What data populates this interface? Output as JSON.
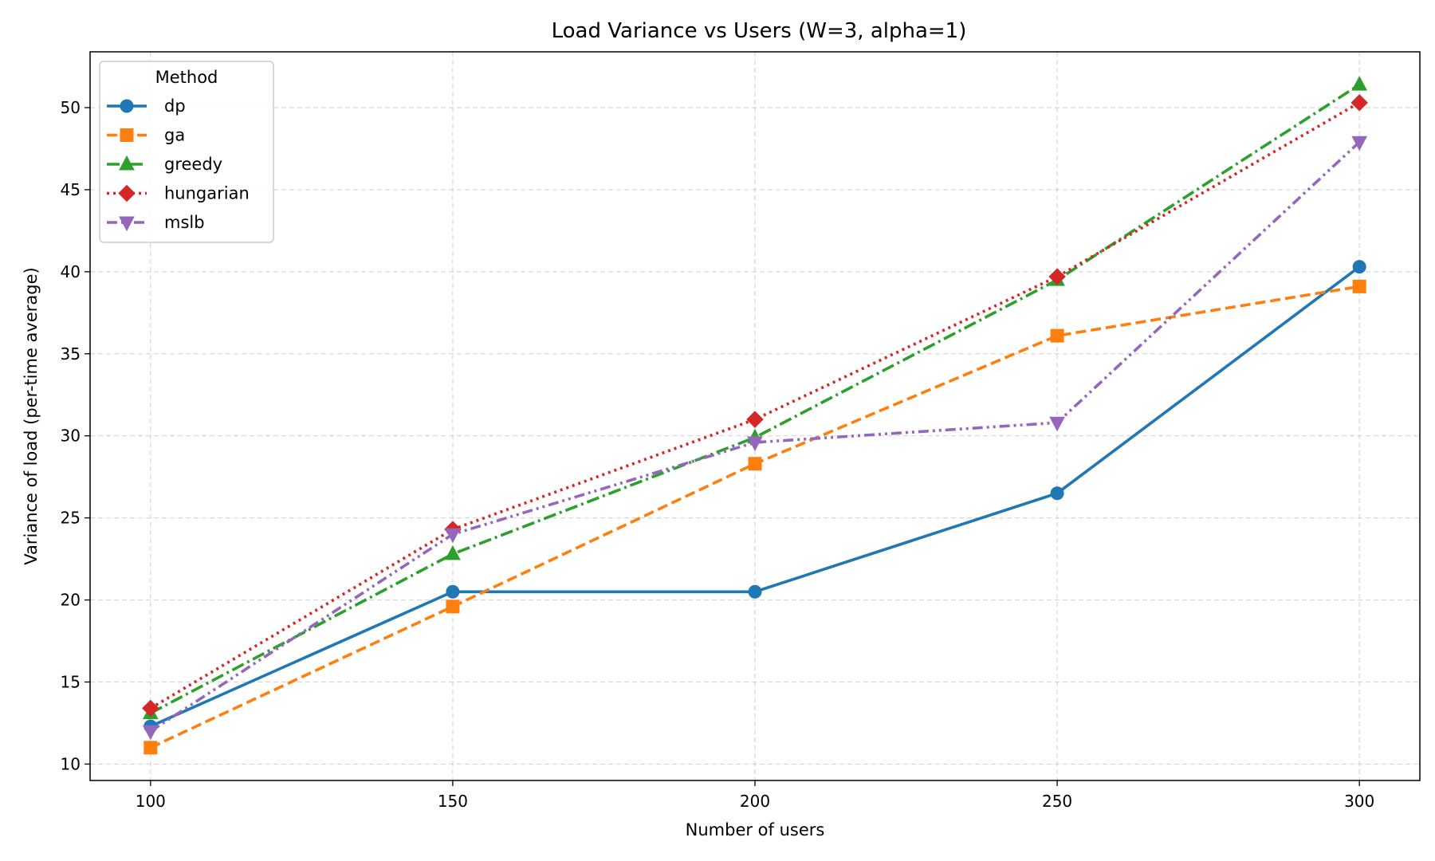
{
  "chart_data": {
    "type": "line",
    "title": "Load Variance vs Users (W=3, alpha=1)",
    "xlabel": "Number of users",
    "ylabel": "Variance of load (per-time average)",
    "x": [
      100,
      150,
      200,
      250,
      300
    ],
    "xticks": [
      "100",
      "150",
      "200",
      "250",
      "300"
    ],
    "yticks": [
      "10",
      "15",
      "20",
      "25",
      "30",
      "35",
      "40",
      "45",
      "50"
    ],
    "xlim": [
      90,
      310
    ],
    "ylim": [
      9.0,
      53.4
    ],
    "grid": true,
    "legend": {
      "title": "Method",
      "placement": "top-left"
    },
    "series": [
      {
        "name": "dp",
        "values": [
          12.3,
          20.5,
          20.5,
          26.5,
          40.3
        ],
        "color": "#1f77b4",
        "marker": "circle",
        "dash": "solid"
      },
      {
        "name": "ga",
        "values": [
          11.0,
          19.6,
          28.3,
          36.1,
          39.1
        ],
        "color": "#ff7f0e",
        "marker": "square",
        "dash": "dashed"
      },
      {
        "name": "greedy",
        "values": [
          13.1,
          22.8,
          29.9,
          39.5,
          51.4
        ],
        "color": "#2ca02c",
        "marker": "triangle-up",
        "dash": "dashdot"
      },
      {
        "name": "hungarian",
        "values": [
          13.4,
          24.3,
          31.0,
          39.7,
          50.3
        ],
        "color": "#d62728",
        "marker": "diamond",
        "dash": "dotted"
      },
      {
        "name": "mslb",
        "values": [
          12.0,
          24.0,
          29.6,
          30.8,
          47.9
        ],
        "color": "#9467bd",
        "marker": "triangle-down",
        "dash": "dashdotdot"
      }
    ]
  }
}
